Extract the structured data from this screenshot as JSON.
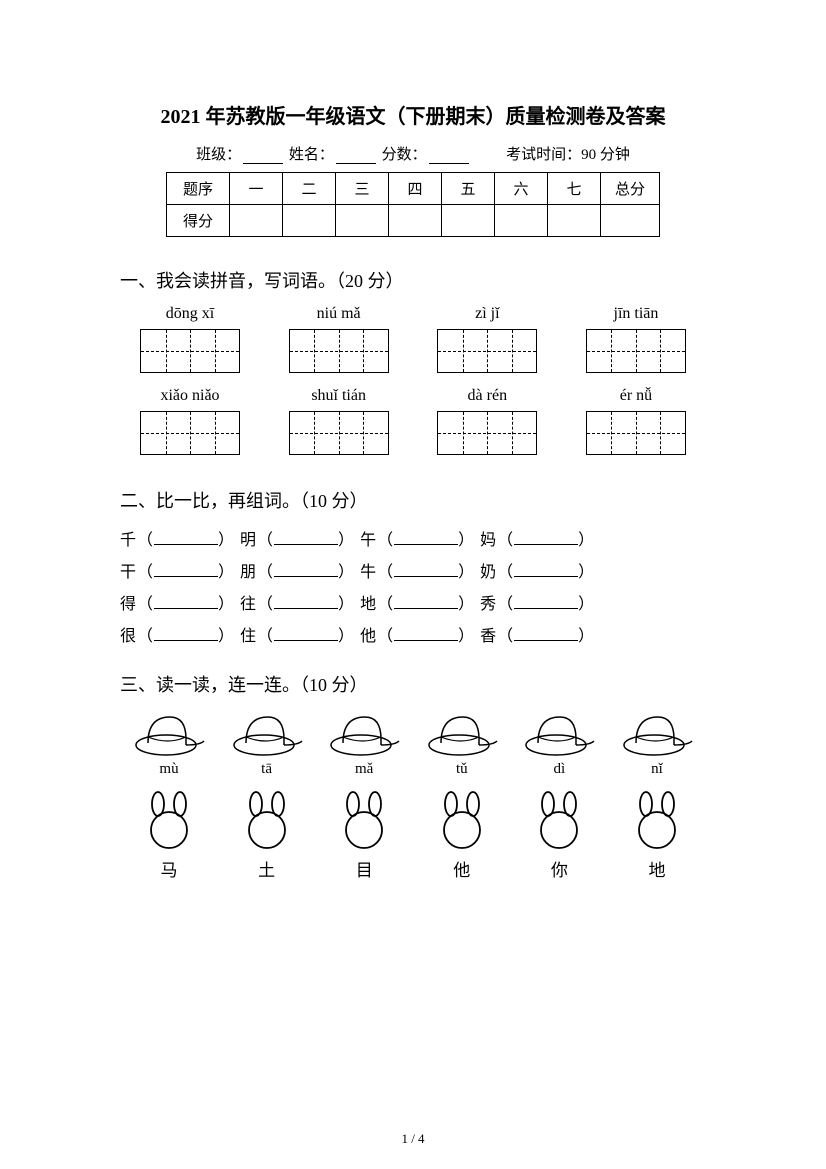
{
  "title": "2021 年苏教版一年级语文（下册期末）质量检测卷及答案",
  "info": {
    "class_label": "班级：",
    "name_label": "姓名：",
    "score_label": "分数：",
    "time_label": "考试时间：90 分钟"
  },
  "score_table": {
    "header_label": "题序",
    "cols": [
      "一",
      "二",
      "三",
      "四",
      "五",
      "六",
      "七"
    ],
    "total_label": "总分",
    "score_row_label": "得分"
  },
  "section1": {
    "heading": "一、我会读拼音，写词语。（20 分）",
    "row1": [
      "dōng xī",
      "niú mǎ",
      "zì jǐ",
      "jīn tiān"
    ],
    "row2": [
      "xiǎo niǎo",
      "shuǐ tián",
      "dà rén",
      "ér nǚ"
    ]
  },
  "section2": {
    "heading": "二、比一比，再组词。（10 分）",
    "lines": [
      [
        "千",
        "明",
        "午",
        "妈"
      ],
      [
        "干",
        "朋",
        "牛",
        "奶"
      ],
      [
        "得",
        "往",
        "地",
        "秀"
      ],
      [
        "很",
        "住",
        "他",
        "香"
      ]
    ]
  },
  "section3": {
    "heading": "三、读一读，连一连。（10 分）",
    "hat_pinyin": [
      "mù",
      "tā",
      "mǎ",
      "tǔ",
      "dì",
      "nǐ"
    ],
    "bunny_chars": [
      "马",
      "土",
      "目",
      "他",
      "你",
      "地"
    ]
  },
  "page_number": "1 / 4",
  "style": {
    "text_color": "#000000",
    "background_color": "#ffffff",
    "title_fontsize": 20,
    "body_fontsize": 16,
    "heading_fontsize": 18
  }
}
